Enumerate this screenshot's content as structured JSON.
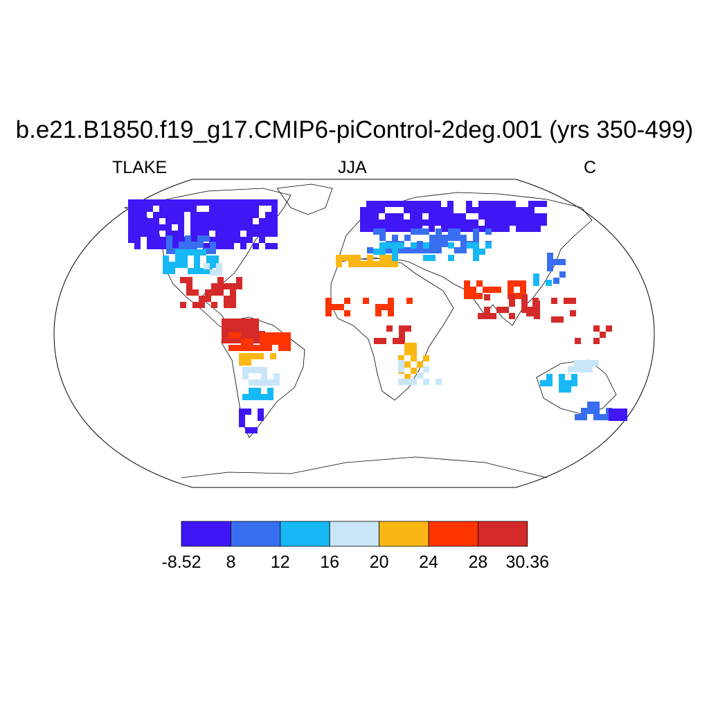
{
  "title": "b.e21.B1850.f19_g17.CMIP6-piControl-2deg.001 (yrs 350-499)",
  "left_label": "TLAKE",
  "center_label": "JJA",
  "right_label": "C",
  "colorbar": {
    "colors": [
      "#4016f5",
      "#386ef0",
      "#16b9f5",
      "#c8e6f8",
      "#fbb814",
      "#fb3400",
      "#d42a2a"
    ],
    "labels": [
      "-8.52",
      "8",
      "12",
      "16",
      "20",
      "24",
      "28",
      "30.36"
    ]
  },
  "map": {
    "projection": "Robinson",
    "background": "#ffffff",
    "outline_color": "#000000"
  }
}
